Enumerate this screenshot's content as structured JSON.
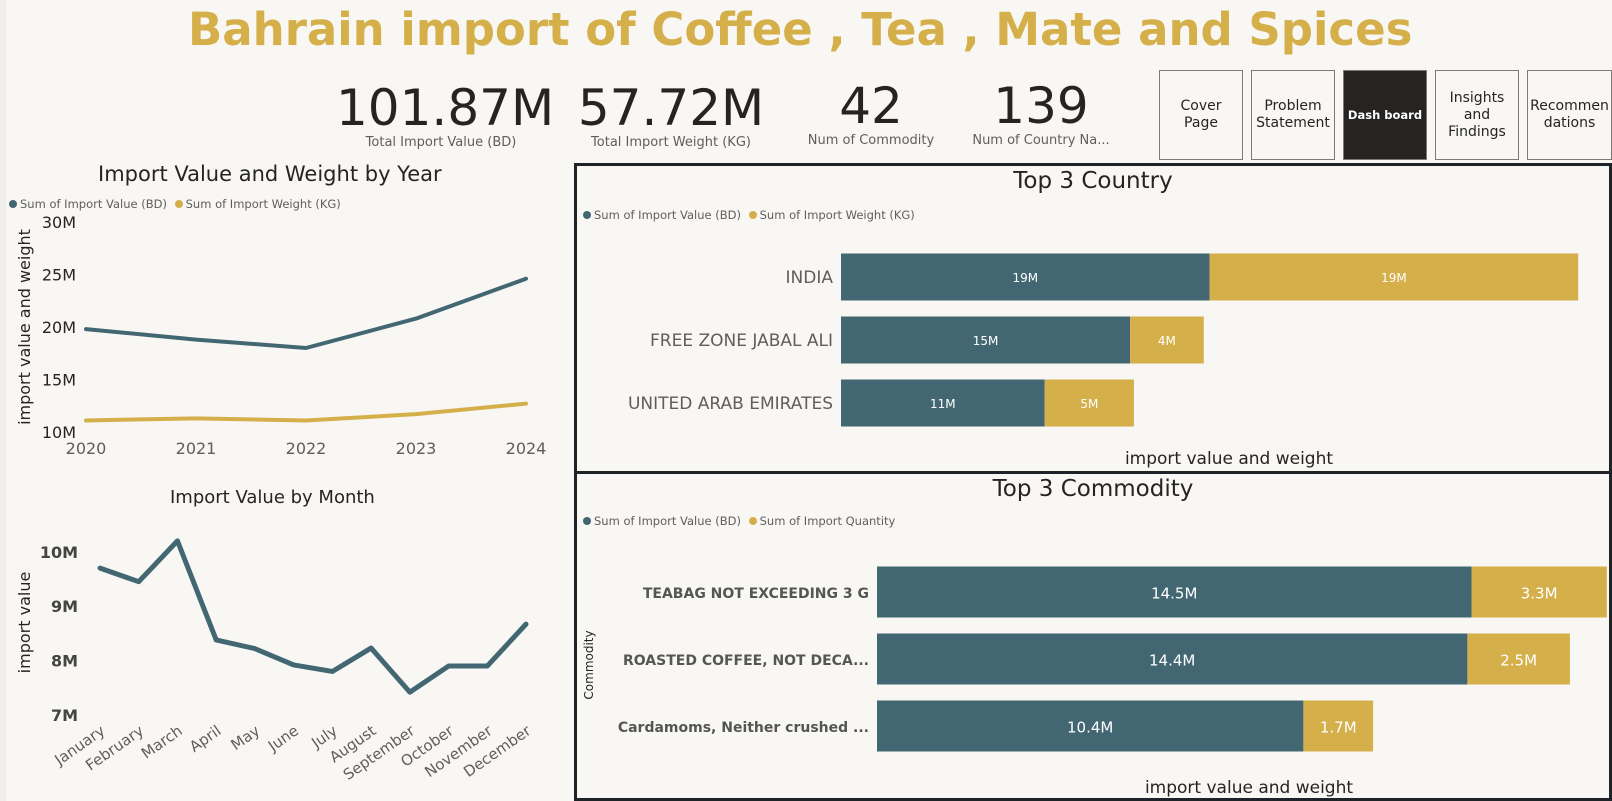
{
  "title": "Bahrain import of Coffee , Tea , Mate and Spices",
  "kpis": [
    {
      "value": "101.87M",
      "label": "Total Import Value (BD)"
    },
    {
      "value": "57.72M",
      "label": "Total Import Weight (KG)"
    },
    {
      "value": "42",
      "label": "Num of Commodity"
    },
    {
      "value": "139",
      "label": "Num of Country Na..."
    }
  ],
  "nav": {
    "cover": "Cover Page",
    "problem": "Problem\nStatement",
    "dashboard": "Dash board",
    "insights": "Insights\nand\nFindings",
    "recommendations": "Recommen\ndations"
  },
  "colors": {
    "value": "#436772",
    "weight": "#d4af4a",
    "title": "#d4af4a"
  },
  "year_chart": {
    "title": "Import Value and Weight by Year",
    "legend": [
      "Sum of Import Value (BD)",
      "Sum of Import Weight (KG)"
    ],
    "ylabel": "import value and weight"
  },
  "month_chart": {
    "title": "Import Value by Month",
    "ylabel": "import value"
  },
  "country_chart": {
    "title": "Top 3 Country",
    "legend": [
      "Sum of Import Value (BD)",
      "Sum of Import Weight (KG)"
    ],
    "xlabel": "import value and weight"
  },
  "commodity_chart": {
    "title": "Top 3 Commodity",
    "legend": [
      "Sum of Import Value (BD)",
      "Sum of Import Quantity"
    ],
    "xlabel": "import value and weight",
    "ylabel": "Commodity"
  },
  "chart_data": [
    {
      "type": "line",
      "title": "Import Value and Weight by Year",
      "x": [
        "2020",
        "2021",
        "2022",
        "2023",
        "2024"
      ],
      "series": [
        {
          "name": "Sum of Import Value (BD)",
          "values": [
            19.8,
            18.8,
            18.0,
            20.8,
            24.6
          ]
        },
        {
          "name": "Sum of Import Weight (KG)",
          "values": [
            11.1,
            11.3,
            11.1,
            11.7,
            12.7
          ]
        }
      ],
      "ylabel": "import value and weight",
      "yticks": [
        "10M",
        "15M",
        "20M",
        "25M",
        "30M"
      ],
      "ylim": [
        10,
        30
      ],
      "legend": "top-left"
    },
    {
      "type": "line",
      "title": "Import Value by Month",
      "x": [
        "January",
        "February",
        "March",
        "April",
        "May",
        "June",
        "July",
        "August",
        "September",
        "October",
        "November",
        "December"
      ],
      "series": [
        {
          "name": "",
          "values": [
            9.7,
            9.45,
            10.2,
            8.38,
            8.22,
            7.92,
            7.8,
            8.23,
            7.42,
            7.9,
            7.9,
            8.67
          ]
        }
      ],
      "ylabel": "import value",
      "yticks": [
        "7M",
        "8M",
        "9M",
        "10M"
      ],
      "ylim": [
        7,
        10.4
      ]
    },
    {
      "type": "bar",
      "orientation": "horizontal",
      "stacked": true,
      "title": "Top 3 Country",
      "categories": [
        "INDIA",
        "FREE ZONE JABAL ALI",
        "UNITED ARAB EMIRATES"
      ],
      "series": [
        {
          "name": "Sum of Import Value (BD)",
          "values": [
            19.0,
            14.9,
            10.5
          ],
          "labels": [
            "19M",
            "15M",
            "11M"
          ]
        },
        {
          "name": "Sum of Import Weight (KG)",
          "values": [
            19.0,
            3.8,
            4.6
          ],
          "labels": [
            "19M",
            "4M",
            "5M"
          ]
        }
      ],
      "xlabel": "import value and weight",
      "legend": "top-left"
    },
    {
      "type": "bar",
      "orientation": "horizontal",
      "stacked": true,
      "title": "Top 3 Commodity",
      "categories": [
        "TEABAG NOT EXCEEDING 3 G",
        "ROASTED COFFEE, NOT DECA...",
        "Cardamoms, Neither crushed ..."
      ],
      "series": [
        {
          "name": "Sum of Import Value (BD)",
          "values": [
            14.5,
            14.4,
            10.4
          ],
          "labels": [
            "14.5M",
            "14.4M",
            "10.4M"
          ]
        },
        {
          "name": "Sum of Import Quantity",
          "values": [
            3.3,
            2.5,
            1.7
          ],
          "labels": [
            "3.3M",
            "2.5M",
            "1.7M"
          ]
        }
      ],
      "xlabel": "import value and weight",
      "ylabel": "Commodity",
      "legend": "top-left"
    }
  ]
}
